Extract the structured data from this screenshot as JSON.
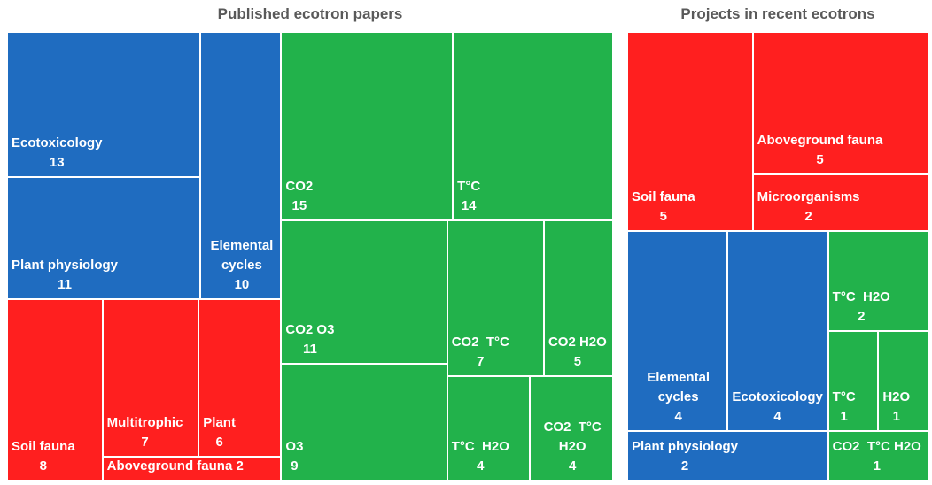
{
  "chart_data": [
    {
      "type": "treemap",
      "title": "Published ecotron papers",
      "items": [
        {
          "label": "Ecotoxicology",
          "value": 13,
          "color": "#1f6cc0"
        },
        {
          "label": "Plant physiology",
          "value": 11,
          "color": "#1f6cc0"
        },
        {
          "label": "Elemental cycles",
          "value": 10,
          "color": "#1f6cc0"
        },
        {
          "label": "Soil fauna",
          "value": 8,
          "color": "#ff1f1f"
        },
        {
          "label": "Multitrophic",
          "value": 7,
          "color": "#ff1f1f"
        },
        {
          "label": "Plant",
          "value": 6,
          "color": "#ff1f1f"
        },
        {
          "label": "Aboveground fauna",
          "value": 2,
          "color": "#ff1f1f"
        },
        {
          "label": "CO2",
          "value": 15,
          "color": "#22b24b"
        },
        {
          "label": "T°C",
          "value": 14,
          "color": "#22b24b"
        },
        {
          "label": "CO2 O3",
          "value": 11,
          "color": "#22b24b"
        },
        {
          "label": "O3",
          "value": 9,
          "color": "#22b24b"
        },
        {
          "label": "CO2  T°C",
          "value": 7,
          "color": "#22b24b"
        },
        {
          "label": "CO2 H2O",
          "value": 5,
          "color": "#22b24b"
        },
        {
          "label": "T°C  H2O",
          "value": 4,
          "color": "#22b24b"
        },
        {
          "label": "CO2  T°C H2O",
          "value": 4,
          "color": "#22b24b"
        }
      ]
    },
    {
      "type": "treemap",
      "title": "Projects in recent ecotrons",
      "items": [
        {
          "label": "Soil fauna",
          "value": 5,
          "color": "#ff1f1f"
        },
        {
          "label": "Aboveground fauna",
          "value": 5,
          "color": "#ff1f1f"
        },
        {
          "label": "Microorganisms",
          "value": 2,
          "color": "#ff1f1f"
        },
        {
          "label": "Elemental cycles",
          "value": 4,
          "color": "#1f6cc0"
        },
        {
          "label": "Ecotoxicology",
          "value": 4,
          "color": "#1f6cc0"
        },
        {
          "label": "Plant physiology",
          "value": 2,
          "color": "#1f6cc0"
        },
        {
          "label": "T°C  H2O",
          "value": 2,
          "color": "#22b24b"
        },
        {
          "label": "T°C",
          "value": 1,
          "color": "#22b24b"
        },
        {
          "label": "H2O",
          "value": 1,
          "color": "#22b24b"
        },
        {
          "label": "CO2  T°C H2O",
          "value": 1,
          "color": "#22b24b"
        }
      ]
    }
  ]
}
